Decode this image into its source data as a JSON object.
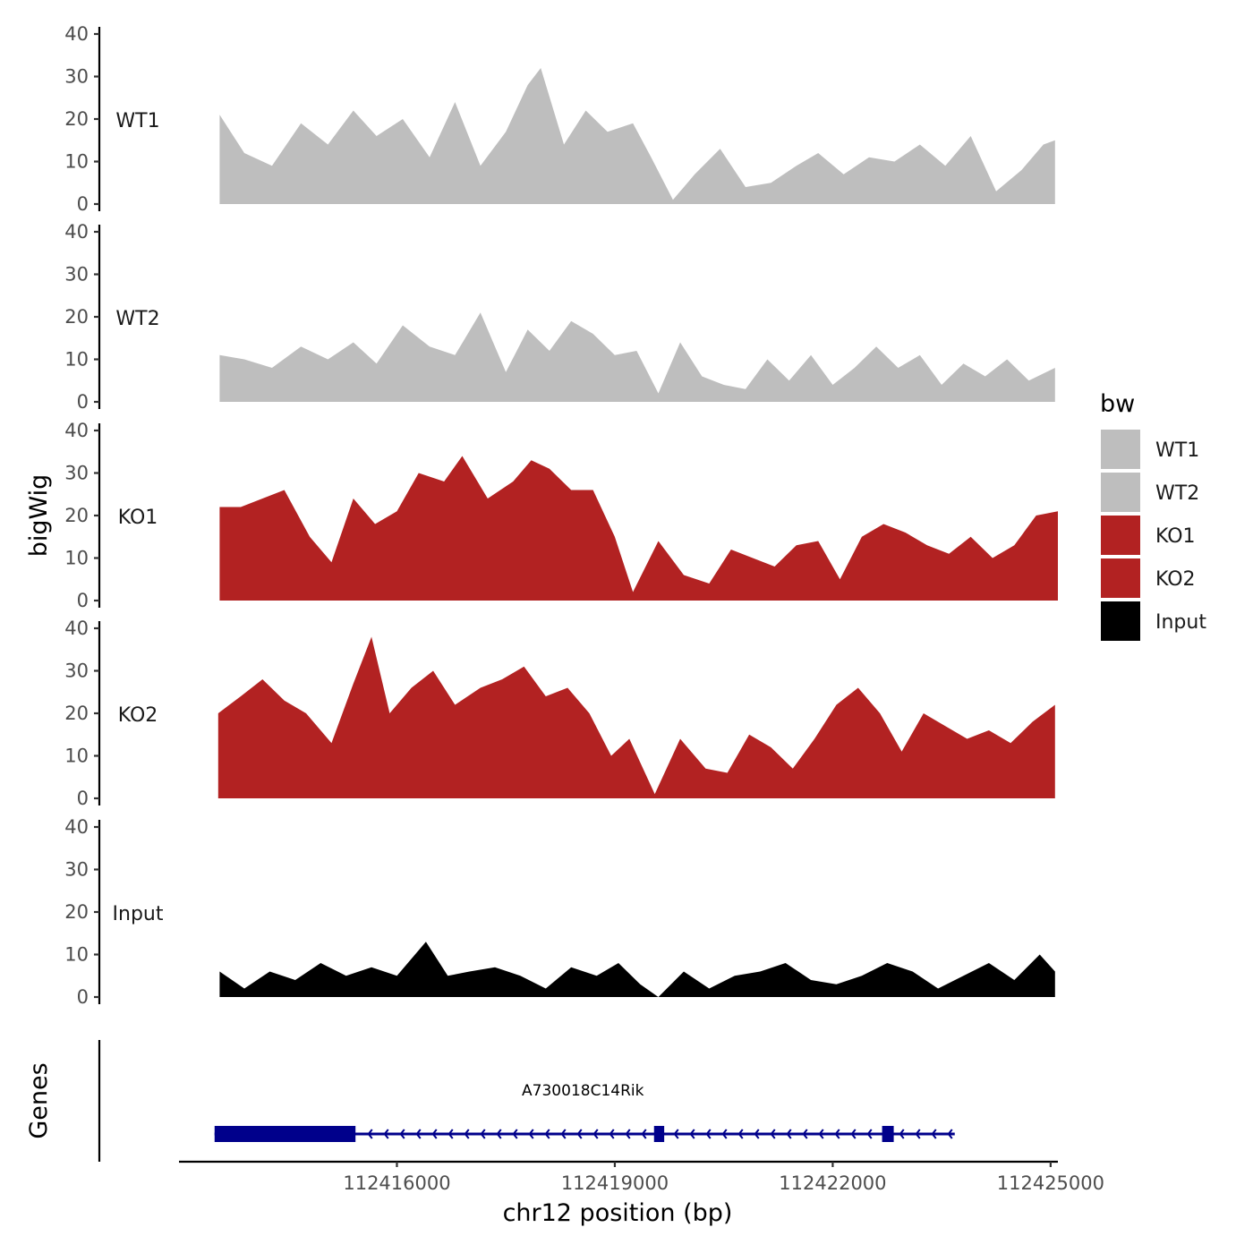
{
  "chart_data": {
    "type": "area",
    "ylabel": "bigWig",
    "xlabel": "chr12 position (bp)",
    "ylim": [
      0,
      40
    ],
    "y_ticks": [
      0,
      10,
      20,
      30,
      40
    ],
    "x_range": [
      112413000,
      112425100
    ],
    "x_ticks": [
      112416000,
      112419000,
      112422000,
      112425000
    ],
    "genes_label": "Genes",
    "legend": {
      "title": "bw",
      "entries": [
        {
          "name": "WT1",
          "color": "#bebebe"
        },
        {
          "name": "WT2",
          "color": "#bebebe"
        },
        {
          "name": "KO1",
          "color": "#b22222"
        },
        {
          "name": "KO2",
          "color": "#b22222"
        },
        {
          "name": "Input",
          "color": "#000000"
        }
      ]
    },
    "tracks": [
      {
        "name": "WT1",
        "color": "#bebebe",
        "x": [
          112413560,
          112413900,
          112414280,
          112414680,
          112415050,
          112415400,
          112415720,
          112416080,
          112416450,
          112416800,
          112417150,
          112417500,
          112417800,
          112417980,
          112418300,
          112418600,
          112418900,
          112419250,
          112419500,
          112419800,
          112420100,
          112420450,
          112420800,
          112421150,
          112421500,
          112421800,
          112422150,
          112422500,
          112422850,
          112423200,
          112423550,
          112423900,
          112424250,
          112424600,
          112424900,
          112425060
        ],
        "values": [
          21,
          12,
          9,
          19,
          14,
          22,
          16,
          20,
          11,
          24,
          9,
          17,
          28,
          32,
          14,
          22,
          17,
          19,
          11,
          1,
          7,
          13,
          4,
          5,
          9,
          12,
          7,
          11,
          10,
          14,
          9,
          16,
          3,
          8,
          14,
          15
        ]
      },
      {
        "name": "WT2",
        "color": "#bebebe",
        "x": [
          112413560,
          112413900,
          112414280,
          112414680,
          112415050,
          112415400,
          112415720,
          112416080,
          112416450,
          112416800,
          112417150,
          112417500,
          112417800,
          112418100,
          112418400,
          112418700,
          112419000,
          112419300,
          112419600,
          112419900,
          112420200,
          112420500,
          112420800,
          112421100,
          112421400,
          112421700,
          112422000,
          112422300,
          112422600,
          112422900,
          112423200,
          112423500,
          112423800,
          112424100,
          112424400,
          112424700,
          112425060
        ],
        "values": [
          11,
          10,
          8,
          13,
          10,
          14,
          9,
          18,
          13,
          11,
          21,
          7,
          17,
          12,
          19,
          16,
          11,
          12,
          2,
          14,
          6,
          4,
          3,
          10,
          5,
          11,
          4,
          8,
          13,
          8,
          11,
          4,
          9,
          6,
          10,
          5,
          8
        ]
      },
      {
        "name": "KO1",
        "color": "#b22222",
        "x": [
          112413560,
          112413850,
          112414150,
          112414450,
          112414800,
          112415100,
          112415400,
          112415700,
          112416000,
          112416300,
          112416650,
          112416900,
          112417250,
          112417600,
          112417850,
          112418100,
          112418400,
          112418700,
          112419000,
          112419250,
          112419600,
          112419950,
          112420300,
          112420600,
          112420900,
          112421200,
          112421500,
          112421800,
          112422100,
          112422400,
          112422700,
          112423000,
          112423300,
          112423600,
          112423900,
          112424200,
          112424500,
          112424800,
          112425100
        ],
        "values": [
          22,
          22,
          24,
          26,
          15,
          9,
          24,
          18,
          21,
          30,
          28,
          34,
          24,
          28,
          33,
          31,
          26,
          26,
          15,
          2,
          14,
          6,
          4,
          12,
          10,
          8,
          13,
          14,
          5,
          15,
          18,
          16,
          13,
          11,
          15,
          10,
          13,
          20,
          21
        ]
      },
      {
        "name": "KO2",
        "color": "#b22222",
        "x": [
          112413540,
          112413850,
          112414150,
          112414450,
          112414750,
          112415100,
          112415400,
          112415650,
          112415900,
          112416200,
          112416500,
          112416800,
          112417150,
          112417450,
          112417750,
          112418050,
          112418350,
          112418650,
          112418950,
          112419200,
          112419550,
          112419900,
          112420250,
          112420550,
          112420850,
          112421150,
          112421450,
          112421750,
          112422050,
          112422350,
          112422650,
          112422950,
          112423250,
          112423550,
          112423850,
          112424150,
          112424450,
          112424750,
          112425060
        ],
        "values": [
          20,
          24,
          28,
          23,
          20,
          13,
          27,
          38,
          20,
          26,
          30,
          22,
          26,
          28,
          31,
          24,
          26,
          20,
          10,
          14,
          1,
          14,
          7,
          6,
          15,
          12,
          7,
          14,
          22,
          26,
          20,
          11,
          20,
          17,
          14,
          16,
          13,
          18,
          22
        ]
      },
      {
        "name": "Input",
        "color": "#000000",
        "x": [
          112413560,
          112413900,
          112414250,
          112414600,
          112414950,
          112415300,
          112415650,
          112416000,
          112416400,
          112416700,
          112417000,
          112417350,
          112417700,
          112418050,
          112418400,
          112418750,
          112419050,
          112419350,
          112419600,
          112419950,
          112420300,
          112420650,
          112421000,
          112421350,
          112421700,
          112422050,
          112422400,
          112422750,
          112423100,
          112423450,
          112423800,
          112424150,
          112424500,
          112424850,
          112425060
        ],
        "values": [
          6,
          2,
          6,
          4,
          8,
          5,
          7,
          5,
          13,
          5,
          6,
          7,
          5,
          2,
          7,
          5,
          8,
          3,
          0,
          6,
          2,
          5,
          6,
          8,
          4,
          3,
          5,
          8,
          6,
          2,
          5,
          8,
          4,
          10,
          6
        ]
      }
    ],
    "gene": {
      "name": "A730018C14Rik",
      "start": 112413490,
      "end": 112423680,
      "strand": "-",
      "exons": [
        {
          "start": 112413490,
          "end": 112415430
        },
        {
          "start": 112419540,
          "end": 112419680
        },
        {
          "start": 112422680,
          "end": 112422840
        }
      ]
    }
  }
}
